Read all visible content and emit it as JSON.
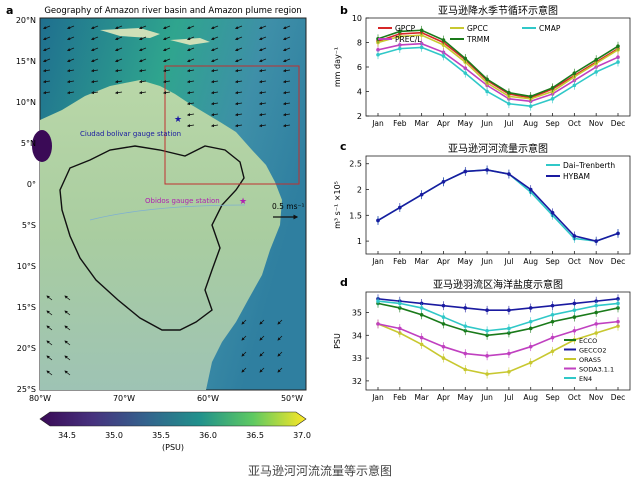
{
  "caption": "亚马逊河河流流量等示意图",
  "map": {
    "panel_letter": "a",
    "title": "Geography of Amazon river basin and Amazon plume region",
    "lat_labels": [
      "20°N",
      "15°N",
      "10°N",
      "5°N",
      "0°",
      "5°S",
      "10°S",
      "15°S",
      "20°S",
      "25°S"
    ],
    "lon_labels": [
      "80°W",
      "70°W",
      "60°W",
      "50°W"
    ],
    "station1": "Ciudad bolivar gauge station",
    "station2": "Obidos gauge station",
    "vector_ref": "0.5 ms⁻¹",
    "colorbar_ticks": [
      "34.5",
      "35.0",
      "35.5",
      "36.0",
      "36.5",
      "37.0"
    ],
    "colorbar_label": "(PSU)"
  },
  "colors": {
    "gpcp": "#d62728",
    "precl": "#c040c0",
    "gpcc": "#c8c830",
    "trmm": "#1a7a1a",
    "cmap": "#30c8c8",
    "dai": "#30c8c8",
    "hybam": "#1a1aa0",
    "ecco": "#1a7a1a",
    "gecco2": "#1a1aa0",
    "oras5": "#c8c830",
    "soda": "#c040c0",
    "en4": "#30c8c8"
  },
  "chart_data": [
    {
      "panel": "b",
      "type": "line",
      "title": "亚马逊降水季节循环示意图",
      "ylabel": "mm day⁻¹",
      "ylim": [
        2,
        10
      ],
      "yticks": [
        2,
        4,
        6,
        8,
        10
      ],
      "categories": [
        "Jan",
        "Feb",
        "Mar",
        "Apr",
        "May",
        "Jun",
        "Jul",
        "Aug",
        "Sep",
        "Oct",
        "Nov",
        "Dec"
      ],
      "legend_position": "top",
      "series": [
        {
          "name": "GPCP",
          "color_key": "gpcp",
          "values": [
            8.1,
            8.7,
            8.8,
            8.0,
            6.6,
            4.9,
            3.8,
            3.5,
            4.2,
            5.3,
            6.4,
            7.5
          ]
        },
        {
          "name": "PREC/L",
          "color_key": "precl",
          "values": [
            7.4,
            7.8,
            7.9,
            7.2,
            5.9,
            4.5,
            3.4,
            3.2,
            3.8,
            4.9,
            6.0,
            6.8
          ]
        },
        {
          "name": "GPCC",
          "color_key": "gpcc",
          "values": [
            8.0,
            8.5,
            8.6,
            7.8,
            6.4,
            4.7,
            3.6,
            3.4,
            4.0,
            5.2,
            6.3,
            7.4
          ]
        },
        {
          "name": "TRMM",
          "color_key": "trmm",
          "values": [
            8.3,
            8.9,
            9.0,
            8.2,
            6.7,
            5.0,
            3.9,
            3.6,
            4.3,
            5.5,
            6.6,
            7.7
          ]
        },
        {
          "name": "CMAP",
          "color_key": "cmap",
          "values": [
            7.0,
            7.5,
            7.6,
            6.9,
            5.5,
            4.0,
            3.0,
            2.8,
            3.4,
            4.5,
            5.6,
            6.4
          ]
        }
      ]
    },
    {
      "panel": "c",
      "type": "line",
      "title": "亚马逊河河流量示意图",
      "ylabel": "m³ s⁻¹ ×10⁵",
      "ylim": [
        0.75,
        2.65
      ],
      "yticks": [
        1.0,
        1.5,
        2.0,
        2.5
      ],
      "categories": [
        "Jan",
        "Feb",
        "Mar",
        "Apr",
        "May",
        "Jun",
        "Jul",
        "Aug",
        "Sep",
        "Oct",
        "Nov",
        "Dec"
      ],
      "legend_position": "top-right",
      "series": [
        {
          "name": "Dai–Trenberth",
          "color_key": "dai",
          "values": [
            1.4,
            1.65,
            1.9,
            2.15,
            2.35,
            2.38,
            2.3,
            1.95,
            1.5,
            1.05,
            1.0,
            1.15
          ]
        },
        {
          "name": "HYBAM",
          "color_key": "hybam",
          "values": [
            1.4,
            1.65,
            1.9,
            2.15,
            2.35,
            2.38,
            2.3,
            2.0,
            1.55,
            1.1,
            1.0,
            1.15
          ]
        }
      ]
    },
    {
      "panel": "d",
      "type": "line",
      "title": "亚马逊羽流区海洋盐度示意图",
      "ylabel": "PSU",
      "ylim": [
        31.6,
        35.9
      ],
      "yticks": [
        32,
        33,
        34,
        35
      ],
      "categories": [
        "Jan",
        "Feb",
        "Mar",
        "Apr",
        "May",
        "Jun",
        "Jul",
        "Aug",
        "Sep",
        "Oct",
        "Nov",
        "Dec"
      ],
      "legend_position": "bottom-right",
      "series": [
        {
          "name": "ECCO",
          "color_key": "ecco",
          "values": [
            35.4,
            35.2,
            34.9,
            34.5,
            34.2,
            34.0,
            34.1,
            34.3,
            34.6,
            34.8,
            35.0,
            35.2
          ]
        },
        {
          "name": "GECCO2",
          "color_key": "gecco2",
          "values": [
            35.6,
            35.5,
            35.4,
            35.3,
            35.2,
            35.1,
            35.1,
            35.2,
            35.3,
            35.4,
            35.5,
            35.6
          ]
        },
        {
          "name": "ORAS5",
          "color_key": "oras5",
          "values": [
            34.5,
            34.1,
            33.6,
            33.0,
            32.5,
            32.3,
            32.4,
            32.8,
            33.3,
            33.8,
            34.1,
            34.4
          ]
        },
        {
          "name": "SODA3.1.1",
          "color_key": "soda",
          "values": [
            34.5,
            34.3,
            33.9,
            33.5,
            33.2,
            33.1,
            33.2,
            33.5,
            33.9,
            34.2,
            34.5,
            34.6
          ]
        },
        {
          "name": "EN4",
          "color_key": "en4",
          "values": [
            35.5,
            35.4,
            35.2,
            34.8,
            34.4,
            34.2,
            34.3,
            34.6,
            34.9,
            35.1,
            35.3,
            35.4
          ]
        }
      ]
    }
  ]
}
